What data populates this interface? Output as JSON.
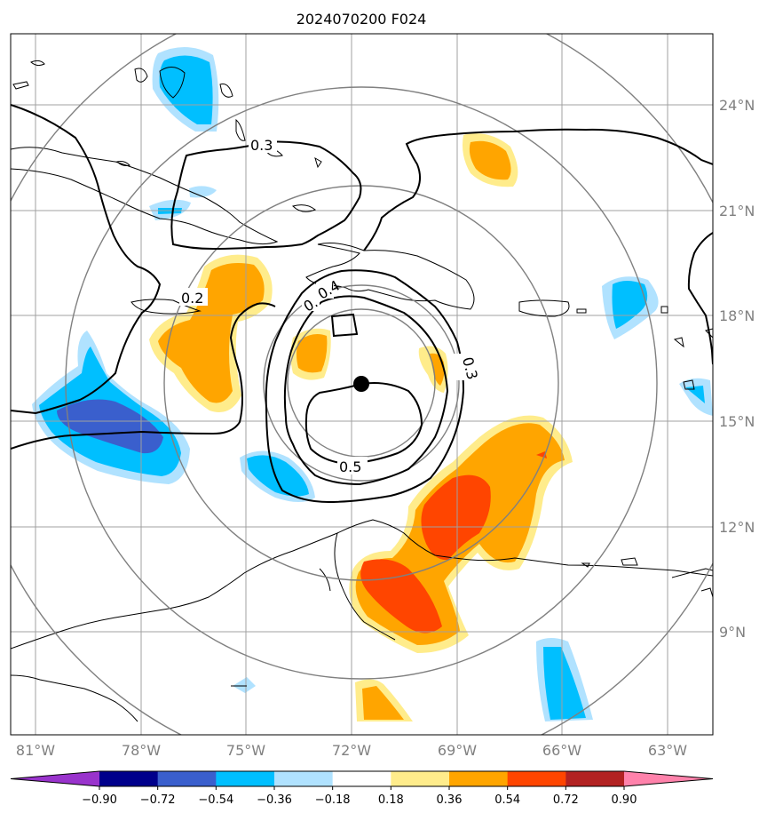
{
  "title": "2024070200 F024",
  "map": {
    "lon_ticks": [
      "81°W",
      "78°W",
      "75°W",
      "72°W",
      "69°W",
      "66°W",
      "63°W"
    ],
    "lat_ticks": [
      "24°N",
      "21°N",
      "18°N",
      "15°N",
      "12°N",
      "9°N"
    ],
    "center_marker": {
      "lon": -71.9,
      "lat": 16.1
    },
    "contour_labels": [
      "0.3",
      "0.2",
      "0.3",
      "0.",
      "0.4",
      "0.5"
    ]
  },
  "colorbar": {
    "ticks": [
      "−0.90",
      "−0.72",
      "−0.54",
      "−0.36",
      "−0.18",
      "0.18",
      "0.36",
      "0.54",
      "0.72",
      "0.90"
    ],
    "colors": [
      "#9933cc",
      "#00008b",
      "#3a5fcd",
      "#00bfff",
      "#b0e2ff",
      "#ffffff",
      "#ffec8b",
      "#ffa500",
      "#ff4500",
      "#b22222",
      "#ff82ab"
    ]
  },
  "colors": {
    "light_blue": "#b0e2ff",
    "blue": "#00bfff",
    "royal_blue": "#3a5fcd",
    "yellow": "#ffec8b",
    "orange": "#ffa500",
    "orange_red": "#ff4500",
    "ring": "#808080",
    "grid": "#a0a0a0"
  }
}
